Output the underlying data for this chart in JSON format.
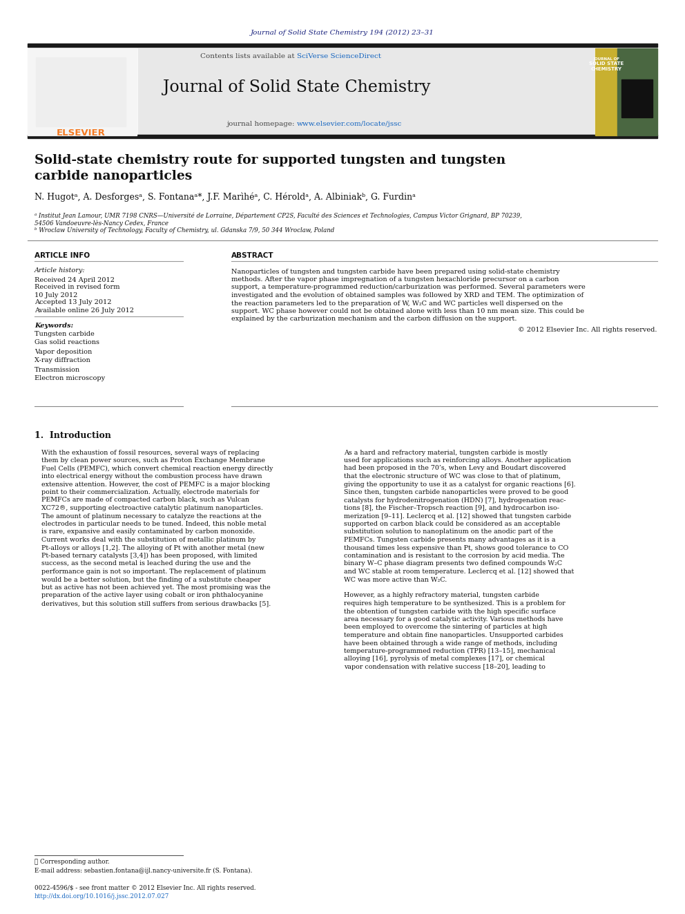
{
  "page_bg": "#ffffff",
  "top_citation": "Journal of Solid State Chemistry 194 (2012) 23–31",
  "top_citation_color": "#1a237e",
  "journal_name": "Journal of Solid State Chemistry",
  "header_bg": "#e8e8e8",
  "contents_text": "Contents lists available at ",
  "sciversedirect": "SciVerse ScienceDirect",
  "homepage_text": "journal homepage: ",
  "homepage_url": "www.elsevier.com/locate/jssc",
  "article_title_line1": "Solid-state chemistry route for supported tungsten and tungsten",
  "article_title_line2": "carbide nanoparticles",
  "authors": "N. Hugotᵃ, A. Desforgesᵃ, S. Fontanaᵃ*, J.F. Marìhéᵃ, C. Héroldᵃ, A. Albiniakᵇ, G. Furdinᵃ",
  "affil_a": "ᵃ Institut Jean Lamour, UMR 7198 CNRS—Université de Lorraine, Département CP2S, Faculté des Sciences et Technologies, Campus Victor Grignard, BP 70239,",
  "affil_a2": "54506 Vandoeuvre-lès-Nancy Cedex, France",
  "affil_b": "ᵇ Wroclaw University of Technology, Faculty of Chemistry, ul. Gdanska 7/9, 50 344 Wroclaw, Poland",
  "article_info_header": "ARTICLE INFO",
  "article_history_header": "Article history:",
  "received1": "Received 24 April 2012",
  "received2": "Received in revised form",
  "received2b": "10 July 2012",
  "accepted": "Accepted 13 July 2012",
  "available": "Available online 26 July 2012",
  "keywords_header": "Keywords:",
  "keywords": [
    "Tungsten carbide",
    "Gas solid reactions",
    "Vapor deposition",
    "X-ray diffraction",
    "Transmission",
    "Electron microscopy"
  ],
  "abstract_header": "ABSTRACT",
  "copyright": "© 2012 Elsevier Inc. All rights reserved.",
  "intro_header": "1.  Introduction",
  "footer_text1": "⋆ Corresponding author.",
  "footer_email": "E-mail address: sebastien.fontana@ijl.nancy-universite.fr (S. Fontana).",
  "footer_text2": "0022-4596/$ - see front matter © 2012 Elsevier Inc. All rights reserved.",
  "footer_doi": "http://dx.doi.org/10.1016/j.jssc.2012.07.027",
  "black_bar_color": "#1a1a1a",
  "link_color": "#1565c0",
  "text_color": "#000000",
  "elsevier_color": "#f47920",
  "cover_green": "#4a6741",
  "cover_yellow": "#c8b030",
  "abstract_lines": [
    "Nanoparticles of tungsten and tungsten carbide have been prepared using solid-state chemistry",
    "methods. After the vapor phase impregnation of a tungsten hexachloride precursor on a carbon",
    "support, a temperature-programmed reduction/carburization was performed. Several parameters were",
    "investigated and the evolution of obtained samples was followed by XRD and TEM. The optimization of",
    "the reaction parameters led to the preparation of W, W₂C and WC particles well dispersed on the",
    "support. WC phase however could not be obtained alone with less than 10 nm mean size. This could be",
    "explained by the carburization mechanism and the carbon diffusion on the support."
  ],
  "intro_col1_lines": [
    "With the exhaustion of fossil resources, several ways of replacing",
    "them by clean power sources, such as Proton Exchange Membrane",
    "Fuel Cells (PEMFC), which convert chemical reaction energy directly",
    "into electrical energy without the combustion process have drawn",
    "extensive attention. However, the cost of PEMFC is a major blocking",
    "point to their commercialization. Actually, electrode materials for",
    "PEMFCs are made of compacted carbon black, such as Vulcan",
    "XC72®, supporting electroactive catalytic platinum nanoparticles.",
    "The amount of platinum necessary to catalyze the reactions at the",
    "electrodes in particular needs to be tuned. Indeed, this noble metal",
    "is rare, expansive and easily contaminated by carbon monoxide.",
    "Current works deal with the substitution of metallic platinum by",
    "Pt-alloys or alloys [1,2]. The alloying of Pt with another metal (new",
    "Pt-based ternary catalysts [3,4]) has been proposed, with limited",
    "success, as the second metal is leached during the use and the",
    "performance gain is not so important. The replacement of platinum",
    "would be a better solution, but the finding of a substitute cheaper",
    "but as active has not been achieved yet. The most promising was the",
    "preparation of the active layer using cobalt or iron phthalocyanine",
    "derivatives, but this solution still suffers from serious drawbacks [5]."
  ],
  "intro_col2_lines": [
    "As a hard and refractory material, tungsten carbide is mostly",
    "used for applications such as reinforcing alloys. Another application",
    "had been proposed in the 70’s, when Levy and Boudart discovered",
    "that the electronic structure of WC was close to that of platinum,",
    "giving the opportunity to use it as a catalyst for organic reactions [6].",
    "Since then, tungsten carbide nanoparticles were proved to be good",
    "catalysts for hydrodenitrogenation (HDN) [7], hydrogenation reac-",
    "tions [8], the Fischer–Tropsch reaction [9], and hydrocarbon iso-",
    "merization [9–11]. Leclercq et al. [12] showed that tungsten carbide",
    "supported on carbon black could be considered as an acceptable",
    "substitution solution to nanoplatinum on the anodic part of the",
    "PEMFCs. Tungsten carbide presents many advantages as it is a",
    "thousand times less expensive than Pt, shows good tolerance to CO",
    "contamination and is resistant to the corrosion by acid media. The",
    "binary W–C phase diagram presents two defined compounds W₂C",
    "and WC stable at room temperature. Leclercq et al. [12] showed that",
    "WC was more active than W₂C.",
    "",
    "However, as a highly refractory material, tungsten carbide",
    "requires high temperature to be synthesized. This is a problem for",
    "the obtention of tungsten carbide with the high specific surface",
    "area necessary for a good catalytic activity. Various methods have",
    "been employed to overcome the sintering of particles at high",
    "temperature and obtain fine nanoparticles. Unsupported carbides",
    "have been obtained through a wide range of methods, including",
    "temperature-programmed reduction (TPR) [13–15], mechanical",
    "alloying [16], pyrolysis of metal complexes [17], or chemical",
    "vapor condensation with relative success [18–20], leading to"
  ]
}
